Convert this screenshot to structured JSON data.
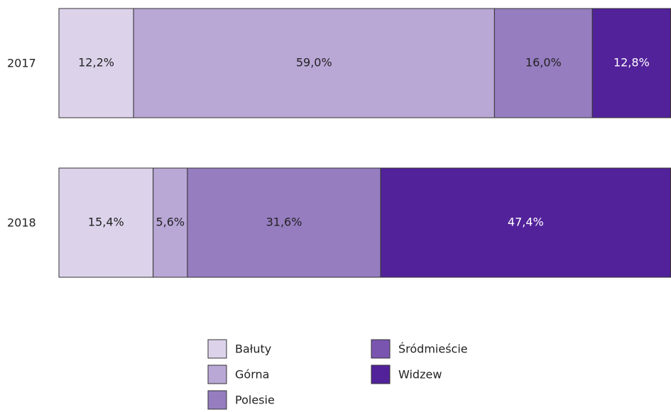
{
  "chart_data": {
    "type": "stacked_barh",
    "categories": [
      "2017",
      "2018"
    ],
    "xlim": [
      0,
      100
    ],
    "legend": "bottom",
    "series": [
      {
        "name": "Bałuty",
        "color": "#dcd3eb",
        "values": [
          12.2,
          15.4
        ],
        "value_labels": [
          "12,2%",
          "15,4%"
        ]
      },
      {
        "name": "Górna",
        "color": "#b9a7d6",
        "values": [
          59.0,
          5.6
        ],
        "value_labels": [
          "59,0%",
          "5,6%"
        ]
      },
      {
        "name": "Polesie",
        "color": "#967dc0",
        "values": [
          16.0,
          31.6
        ],
        "value_labels": [
          "16,0%",
          "31,6%"
        ]
      },
      {
        "name": "Śródmieście",
        "color": "#7a55b0",
        "values": [
          null,
          null
        ],
        "value_labels": [
          null,
          null
        ]
      },
      {
        "name": "Widzew",
        "color": "#52229a",
        "values": [
          12.8,
          47.4
        ],
        "value_labels": [
          "12,8%",
          "47,4%"
        ]
      }
    ]
  }
}
